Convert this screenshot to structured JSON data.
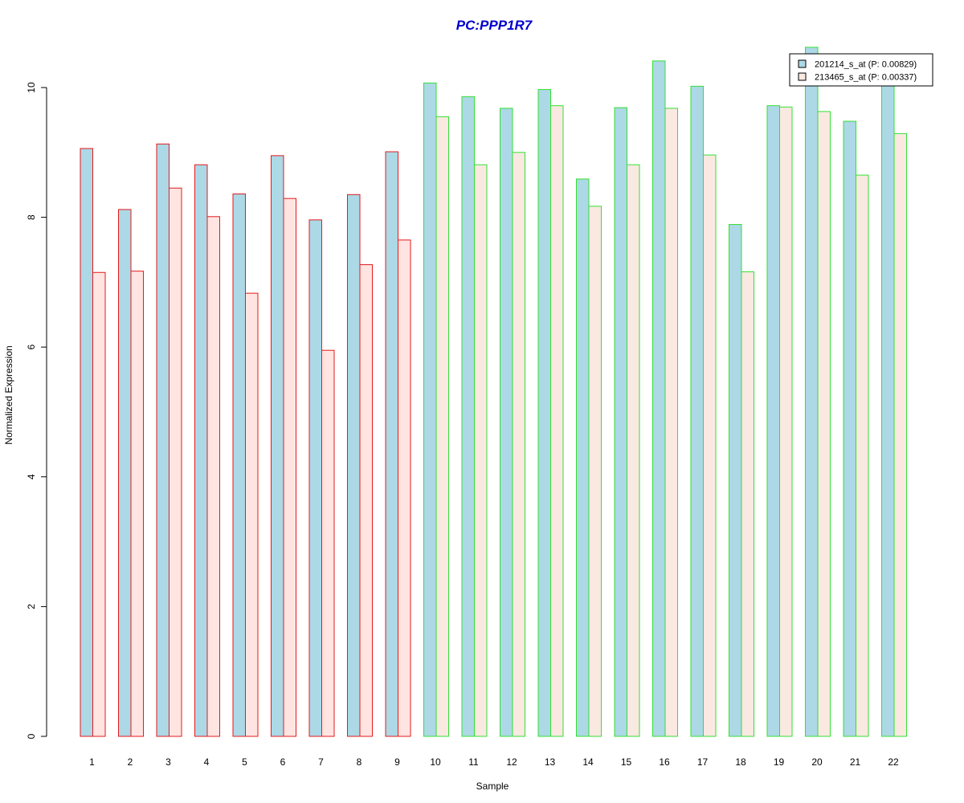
{
  "chart_data": {
    "type": "bar",
    "title": "PC:PPP1R7",
    "xlabel": "Sample",
    "ylabel": "Normalized Expression",
    "ylim": [
      0,
      10
    ],
    "y_ticks": [
      0,
      2,
      4,
      6,
      8,
      10
    ],
    "grid": false,
    "legend_position": "top-right",
    "categories": [
      "1",
      "2",
      "3",
      "4",
      "5",
      "6",
      "7",
      "8",
      "9",
      "10",
      "11",
      "12",
      "13",
      "14",
      "15",
      "16",
      "17",
      "18",
      "19",
      "20",
      "21",
      "22"
    ],
    "series": [
      {
        "name": "201214_s_at (P: 0.00829)",
        "fill": "#add8e6",
        "values": [
          9.06,
          8.12,
          9.13,
          8.81,
          8.36,
          8.95,
          7.96,
          8.35,
          9.01,
          10.07,
          9.86,
          9.68,
          9.97,
          8.59,
          9.69,
          10.41,
          10.02,
          7.89,
          9.72,
          10.62,
          9.48,
          10.13
        ]
      },
      {
        "name": "213465_s_at (P: 0.00337)",
        "fill_red_group": "#ffe4e1",
        "fill_green_group": "#fae9e1",
        "values": [
          7.15,
          7.17,
          8.45,
          8.01,
          6.83,
          8.29,
          5.95,
          7.27,
          7.65,
          9.55,
          8.81,
          9.0,
          9.72,
          8.17,
          8.81,
          9.68,
          8.96,
          7.16,
          9.7,
          9.63,
          8.65,
          9.29
        ]
      }
    ],
    "groups": [
      {
        "samples": [
          "1",
          "2",
          "3",
          "4",
          "5",
          "6",
          "7",
          "8",
          "9"
        ],
        "border_color": "#e41a1c"
      },
      {
        "samples": [
          "10",
          "11",
          "12",
          "13",
          "14",
          "15",
          "16",
          "17",
          "18",
          "19",
          "20",
          "21",
          "22"
        ],
        "border_color": "#33e033"
      }
    ],
    "title_color": "#0000cc"
  }
}
